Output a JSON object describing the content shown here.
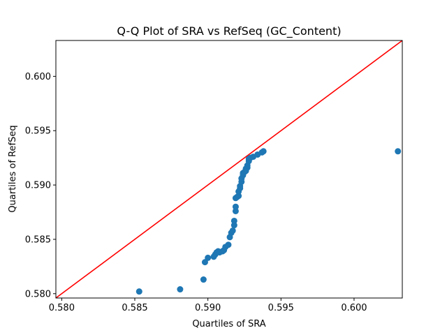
{
  "chart_data": {
    "type": "scatter",
    "title": "Q-Q Plot of SRA vs RefSeq (GC_Content)",
    "xlabel": "Quartiles of SRA",
    "ylabel": "Quartiles of RefSeq",
    "xlim": [
      0.5796,
      0.6033
    ],
    "ylim": [
      0.5796,
      0.6033
    ],
    "xticks": [
      0.58,
      0.585,
      0.59,
      0.595,
      0.6
    ],
    "yticks": [
      0.58,
      0.585,
      0.59,
      0.595,
      0.6
    ],
    "xtick_labels": [
      "0.580",
      "0.585",
      "0.590",
      "0.595",
      "0.600"
    ],
    "ytick_labels": [
      "0.580",
      "0.585",
      "0.590",
      "0.595",
      "0.600"
    ],
    "grid": false,
    "point_color": "#1f77b4",
    "line_color": "#ff0000",
    "reference_line": [
      [
        0.5796,
        0.5796
      ],
      [
        0.6033,
        0.6033
      ]
    ],
    "points": [
      [
        0.5853,
        0.5802
      ],
      [
        0.5881,
        0.5804
      ],
      [
        0.5897,
        0.5813
      ],
      [
        0.5898,
        0.5829
      ],
      [
        0.59,
        0.5833
      ],
      [
        0.5904,
        0.5834
      ],
      [
        0.5905,
        0.5836
      ],
      [
        0.5906,
        0.5838
      ],
      [
        0.5907,
        0.5839
      ],
      [
        0.5908,
        0.5838
      ],
      [
        0.591,
        0.5839
      ],
      [
        0.5911,
        0.584
      ],
      [
        0.5912,
        0.5843
      ],
      [
        0.5914,
        0.5845
      ],
      [
        0.5915,
        0.5852
      ],
      [
        0.5916,
        0.5856
      ],
      [
        0.5917,
        0.5858
      ],
      [
        0.5918,
        0.5863
      ],
      [
        0.5918,
        0.5867
      ],
      [
        0.5919,
        0.5876
      ],
      [
        0.5919,
        0.588
      ],
      [
        0.5919,
        0.5888
      ],
      [
        0.592,
        0.5889
      ],
      [
        0.5921,
        0.589
      ],
      [
        0.5921,
        0.5894
      ],
      [
        0.5922,
        0.5897
      ],
      [
        0.5922,
        0.5899
      ],
      [
        0.5923,
        0.5903
      ],
      [
        0.5923,
        0.5906
      ],
      [
        0.5924,
        0.5909
      ],
      [
        0.5924,
        0.5911
      ],
      [
        0.5925,
        0.5912
      ],
      [
        0.5926,
        0.5913
      ],
      [
        0.5926,
        0.5915
      ],
      [
        0.5927,
        0.5916
      ],
      [
        0.5927,
        0.5918
      ],
      [
        0.5928,
        0.5922
      ],
      [
        0.5928,
        0.5924
      ],
      [
        0.5929,
        0.5925
      ],
      [
        0.5931,
        0.5926
      ],
      [
        0.5934,
        0.5928
      ],
      [
        0.5937,
        0.593
      ],
      [
        0.5938,
        0.5931
      ],
      [
        0.603,
        0.5931
      ]
    ]
  }
}
